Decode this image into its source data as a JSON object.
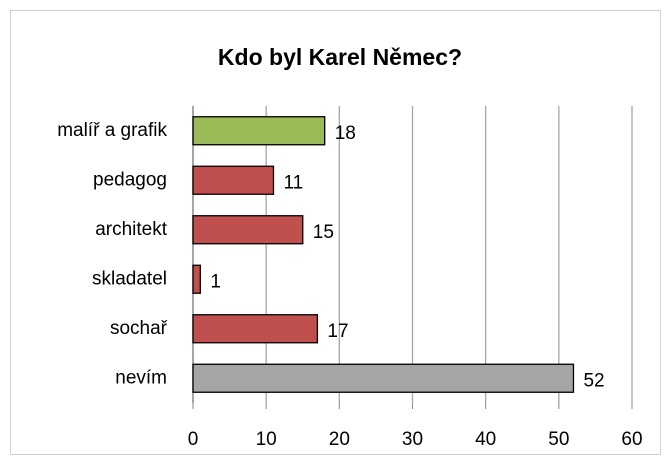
{
  "chart_data": {
    "type": "bar",
    "orientation": "horizontal",
    "title": "Kdo byl Karel Němec?",
    "categories": [
      "malíř a grafik",
      "pedagog",
      "architekt",
      "skladatel",
      "sochař",
      "nevím"
    ],
    "values": [
      18,
      11,
      15,
      1,
      17,
      52
    ],
    "colors": [
      "#9bbb59",
      "#c0504d",
      "#c0504d",
      "#c0504d",
      "#c0504d",
      "#a5a5a5"
    ],
    "xlim": [
      0,
      60
    ],
    "xticks": [
      0,
      10,
      20,
      30,
      40,
      50,
      60
    ],
    "grid": true
  }
}
